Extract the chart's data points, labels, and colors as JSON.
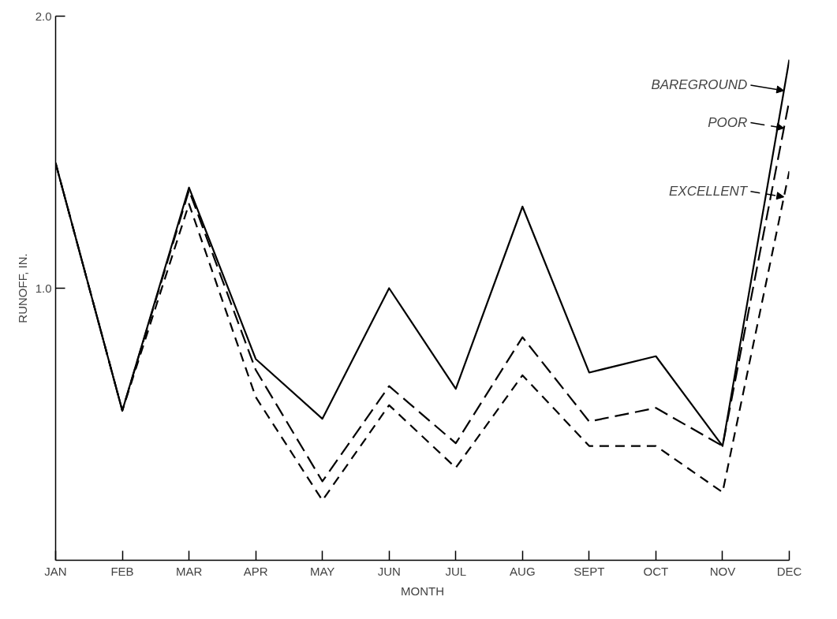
{
  "chart_data": {
    "type": "line",
    "xlabel": "MONTH",
    "ylabel": "RUNOFF, IN.",
    "categories": [
      "JAN",
      "FEB",
      "MAR",
      "APR",
      "MAY",
      "JUN",
      "JUL",
      "AUG",
      "SEPT",
      "OCT",
      "NOV",
      "DEC"
    ],
    "series": [
      {
        "name": "BAREGROUND",
        "color": "#000000",
        "line_style": "solid",
        "values": [
          1.46,
          0.55,
          1.37,
          0.74,
          0.52,
          1.0,
          0.63,
          1.3,
          0.69,
          0.75,
          0.42,
          1.84
        ]
      },
      {
        "name": "POOR",
        "color": "#000000",
        "line_style": "dashed",
        "values": [
          1.46,
          0.55,
          1.36,
          0.7,
          0.29,
          0.64,
          0.43,
          0.82,
          0.51,
          0.56,
          0.42,
          1.69
        ]
      },
      {
        "name": "EXCELLENT",
        "color": "#000000",
        "line_style": "dotted",
        "values": [
          1.46,
          0.55,
          1.31,
          0.6,
          0.22,
          0.57,
          0.34,
          0.68,
          0.42,
          0.42,
          0.25,
          1.43
        ]
      }
    ],
    "ylim": [
      0,
      2.0
    ],
    "yticks": [
      {
        "value": 1.0,
        "label": "1.0"
      },
      {
        "value": 2.0,
        "label": "2.0"
      }
    ],
    "grid": false,
    "legend": "top right",
    "marker": "none"
  }
}
